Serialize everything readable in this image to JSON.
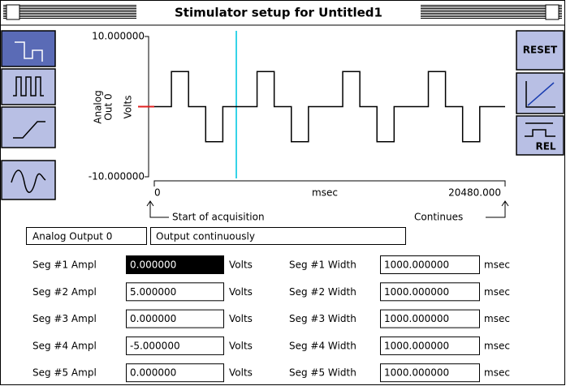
{
  "window": {
    "title": "Stimulator setup for Untitled1"
  },
  "buttons": {
    "reset": "RESET",
    "rel": "REL"
  },
  "plot": {
    "y_max": "10.000000",
    "y_min": "-10.000000",
    "channel_lines": [
      "Analog",
      "Out 0"
    ],
    "y_unit": "Volts",
    "x_start": "0",
    "x_unit": "msec",
    "x_end": "20480.000",
    "start_label": "Start of acquisition",
    "end_label": "Continues"
  },
  "output": {
    "channel": "Analog Output 0",
    "mode": "Output continuously"
  },
  "segments": [
    {
      "amp_label": "Seg #1 Ampl",
      "amp": "0.000000",
      "amp_unit": "Volts",
      "width_label": "Seg #1 Width",
      "width": "1000.000000",
      "width_unit": "msec"
    },
    {
      "amp_label": "Seg #2 Ampl",
      "amp": "5.000000",
      "amp_unit": "Volts",
      "width_label": "Seg #2 Width",
      "width": "1000.000000",
      "width_unit": "msec"
    },
    {
      "amp_label": "Seg #3 Ampl",
      "amp": "0.000000",
      "amp_unit": "Volts",
      "width_label": "Seg #3 Width",
      "width": "1000.000000",
      "width_unit": "msec"
    },
    {
      "amp_label": "Seg #4 Ampl",
      "amp": "-5.000000",
      "amp_unit": "Volts",
      "width_label": "Seg #4 Width",
      "width": "1000.000000",
      "width_unit": "msec"
    },
    {
      "amp_label": "Seg #5 Ampl",
      "amp": "0.000000",
      "amp_unit": "Volts",
      "width_label": "Seg #5 Width",
      "width": "1000.000000",
      "width_unit": "msec"
    }
  ]
}
